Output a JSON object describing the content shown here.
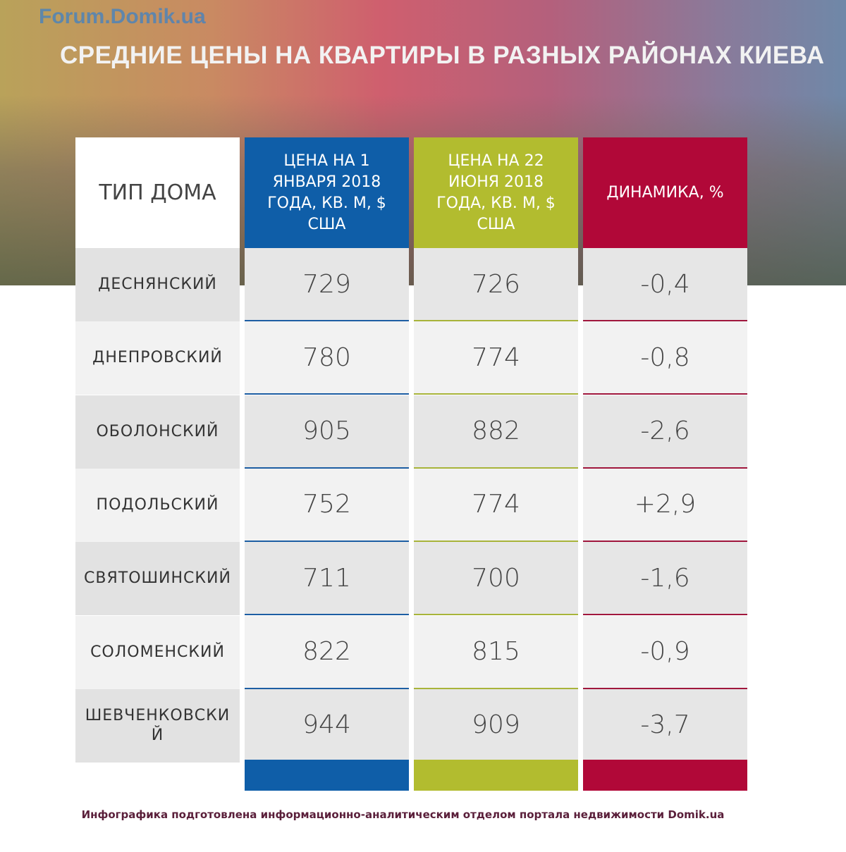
{
  "title": "СРЕДНИЕ ЦЕНЫ НА КВАРТИРЫ В РАЗНЫХ РАЙОНАХ КИЕВА",
  "watermark": "Forum.Domik.ua",
  "headers": [
    "ТИП ДОМА",
    "ЦЕНА НА 1 ЯНВАРЯ 2018 ГОДА, КВ. М, $ США",
    "ЦЕНА НА 22 ИЮНЯ 2018 ГОДА, КВ. М, $ США",
    "ДИНАМИКА, %"
  ],
  "colors": {
    "blue": "#0f5ea8",
    "green": "#b2bc2f",
    "red": "#b10838"
  },
  "rows": [
    {
      "name": "ДЕСНЯНСКИЙ",
      "jan": "729",
      "jun": "726",
      "dyn": "-0,4"
    },
    {
      "name": "ДНЕПРОВСКИЙ",
      "jan": "780",
      "jun": "774",
      "dyn": "-0,8"
    },
    {
      "name": "ОБОЛОНСКИЙ",
      "jan": "905",
      "jun": "882",
      "dyn": "-2,6"
    },
    {
      "name": "ПОДОЛЬСКИЙ",
      "jan": "752",
      "jun": "774",
      "dyn": "+2,9"
    },
    {
      "name": "СВЯТОШИНСКИЙ",
      "jan": "711",
      "jun": "700",
      "dyn": "-1,6"
    },
    {
      "name": "СОЛОМЕНСКИЙ",
      "jan": "822",
      "jun": "815",
      "dyn": "-0,9"
    },
    {
      "name": "ШЕВЧЕНКОВСКИЙ",
      "jan": "944",
      "jun": "909",
      "dyn": "-3,7"
    }
  ],
  "footer": "Инфографика подготовлена информационно-аналитическим отделом портала недвижимости Domik.ua"
}
